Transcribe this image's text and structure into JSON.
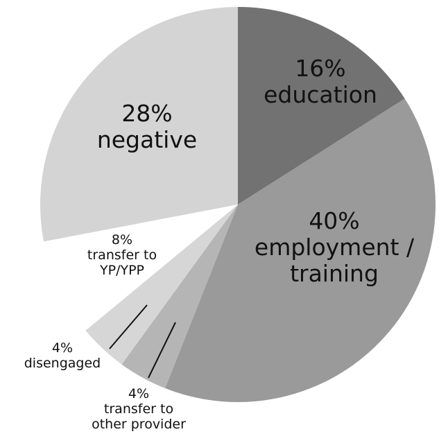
{
  "chart_data": {
    "type": "pie",
    "categories": [
      "education",
      "employment / training",
      "transfer to other provider",
      "disengaged",
      "transfer to YP/YPP",
      "negative"
    ],
    "values": [
      16,
      40,
      4,
      4,
      8,
      28
    ],
    "value_labels": [
      "16%",
      "40%",
      "4%",
      "4%",
      "8%",
      "28%"
    ],
    "colors": [
      "#727272",
      "#9a9a9a",
      "#b5b5b5",
      "#d6d6d6",
      "#ffffff",
      "#d4d4d4"
    ]
  }
}
